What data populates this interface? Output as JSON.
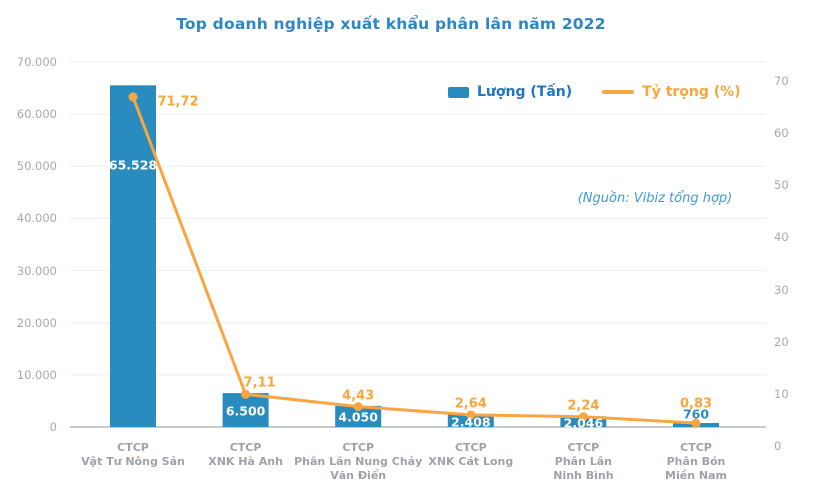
{
  "page": {
    "background": "#FFFFFF"
  },
  "chart_data": {
    "type": "bar+line",
    "title": "Top doanh nghiệp xuất khẩu phân lân năm 2022",
    "source_note": "(Nguồn: Vibiz tổng hợp)",
    "legend": {
      "position": "top-right",
      "items": [
        {
          "label": "Lượng (Tấn)",
          "marker": "square",
          "color": "#2A8CBE"
        },
        {
          "label": "Tỷ trọng (%)",
          "marker": "line",
          "color": "#F9A642"
        }
      ]
    },
    "categories": [
      [
        "CTCP",
        "Vật Tư Nông Sản"
      ],
      [
        "CTCP",
        "XNK Hà Anh"
      ],
      [
        "CTCP",
        "Phân Lân Nung Chảy",
        "Văn Điển"
      ],
      [
        "CTCP",
        "XNK Cát Long"
      ],
      [
        "CTCP",
        "Phân Lân",
        "Ninh Bình"
      ],
      [
        "CTCP",
        "Phân Bón",
        "Miền Nam"
      ]
    ],
    "series": [
      {
        "name": "Lượng (Tấn)",
        "type": "bar",
        "axis": "left",
        "color": "#2A8CBE",
        "values": [
          65528,
          6500,
          4050,
          2408,
          2046,
          760
        ],
        "data_labels": [
          "65.528",
          "6.500",
          "4.050",
          "2.408",
          "2.046",
          "760"
        ]
      },
      {
        "name": "Tỷ trọng (%)",
        "type": "line",
        "axis": "right",
        "color": "#F9A642",
        "values": [
          71.72,
          7.11,
          4.43,
          2.64,
          2.24,
          0.83
        ],
        "data_labels": [
          "71,72",
          "7,11",
          "4,43",
          "2,64",
          "2,24",
          "0,83"
        ]
      }
    ],
    "left_axis": {
      "min": 0,
      "max": 70000,
      "ticks": [
        "0",
        "10.000",
        "20.000",
        "30.000",
        "40.000",
        "50.000",
        "60.000",
        "70.000"
      ]
    },
    "right_axis": {
      "min": 0,
      "max": 79.3,
      "ticks": [
        "0",
        "10",
        "20",
        "30",
        "40",
        "50",
        "60",
        "70"
      ]
    },
    "grid": "horizontal",
    "colors": {
      "bar": "#2A8CBE",
      "line": "#F9A642",
      "title": "#2E87C5",
      "axis_text": "#A6AAAF",
      "gridline": "#EDEEF0",
      "baseline": "#C6CACD"
    }
  }
}
